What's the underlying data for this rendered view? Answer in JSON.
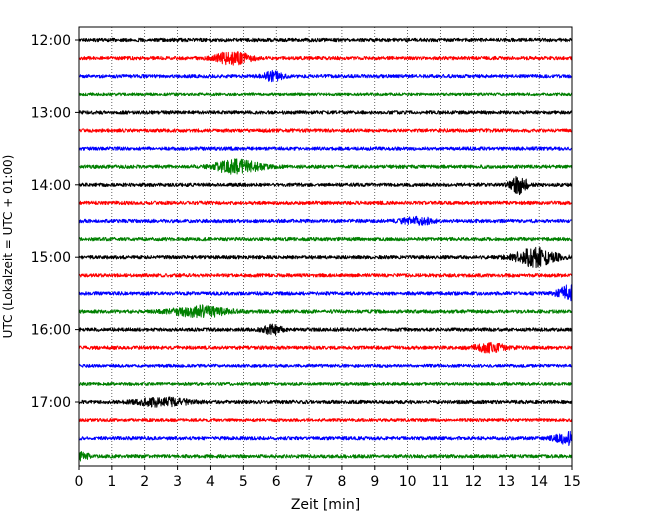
{
  "chart_data": {
    "type": "line",
    "title": "",
    "xlabel": "Zeit  [min]",
    "ylabel": "UTC (Lokalzeit = UTC + 01:00)",
    "xlim": [
      0,
      15
    ],
    "xticks": [
      "0",
      "1",
      "2",
      "3",
      "4",
      "5",
      "6",
      "7",
      "8",
      "9",
      "10",
      "11",
      "12",
      "13",
      "14",
      "15"
    ],
    "ytick_labels": [
      "12:00",
      "13:00",
      "14:00",
      "15:00",
      "16:00",
      "17:00"
    ],
    "grid": "vertical dotted",
    "color_cycle": [
      "#000000",
      "#ff0000",
      "#0000ff",
      "#008000"
    ],
    "traces": [
      {
        "start": "12:00",
        "amplitude": 0.25,
        "events": []
      },
      {
        "start": "12:15",
        "amplitude": 0.25,
        "events": [
          {
            "t": 4.7,
            "amp": 0.9,
            "width": 0.5
          }
        ]
      },
      {
        "start": "12:30",
        "amplitude": 0.25,
        "events": [
          {
            "t": 5.9,
            "amp": 0.6,
            "width": 0.3
          }
        ]
      },
      {
        "start": "12:45",
        "amplitude": 0.2,
        "events": []
      },
      {
        "start": "13:00",
        "amplitude": 0.25,
        "events": []
      },
      {
        "start": "13:15",
        "amplitude": 0.25,
        "events": []
      },
      {
        "start": "13:30",
        "amplitude": 0.25,
        "events": []
      },
      {
        "start": "13:45",
        "amplitude": 0.25,
        "events": [
          {
            "t": 4.8,
            "amp": 0.9,
            "width": 0.7
          }
        ]
      },
      {
        "start": "14:00",
        "amplitude": 0.25,
        "events": [
          {
            "t": 13.4,
            "amp": 1.2,
            "width": 0.25
          }
        ]
      },
      {
        "start": "14:15",
        "amplitude": 0.25,
        "events": []
      },
      {
        "start": "14:30",
        "amplitude": 0.25,
        "events": [
          {
            "t": 10.3,
            "amp": 0.45,
            "width": 0.5
          }
        ]
      },
      {
        "start": "14:45",
        "amplitude": 0.25,
        "events": []
      },
      {
        "start": "15:00",
        "amplitude": 0.25,
        "events": [
          {
            "t": 13.9,
            "amp": 1.3,
            "width": 0.6
          }
        ]
      },
      {
        "start": "15:15",
        "amplitude": 0.25,
        "events": []
      },
      {
        "start": "15:30",
        "amplitude": 0.25,
        "events": [
          {
            "t": 14.95,
            "amp": 1.1,
            "width": 0.35
          }
        ]
      },
      {
        "start": "15:45",
        "amplitude": 0.25,
        "events": [
          {
            "t": 3.7,
            "amp": 0.75,
            "width": 0.8
          }
        ]
      },
      {
        "start": "16:00",
        "amplitude": 0.25,
        "events": [
          {
            "t": 5.9,
            "amp": 0.6,
            "width": 0.3
          }
        ]
      },
      {
        "start": "16:15",
        "amplitude": 0.25,
        "events": [
          {
            "t": 12.5,
            "amp": 0.55,
            "width": 0.5
          }
        ]
      },
      {
        "start": "16:30",
        "amplitude": 0.22,
        "events": []
      },
      {
        "start": "16:45",
        "amplitude": 0.22,
        "events": []
      },
      {
        "start": "17:00",
        "amplitude": 0.25,
        "events": [
          {
            "t": 2.5,
            "amp": 0.55,
            "width": 0.8
          }
        ]
      },
      {
        "start": "17:15",
        "amplitude": 0.22,
        "events": []
      },
      {
        "start": "17:30",
        "amplitude": 0.25,
        "events": [
          {
            "t": 14.9,
            "amp": 0.8,
            "width": 0.4
          }
        ]
      },
      {
        "start": "17:45",
        "amplitude": 0.25,
        "events": [
          {
            "t": 0.1,
            "amp": 0.5,
            "width": 0.2
          }
        ]
      }
    ]
  }
}
